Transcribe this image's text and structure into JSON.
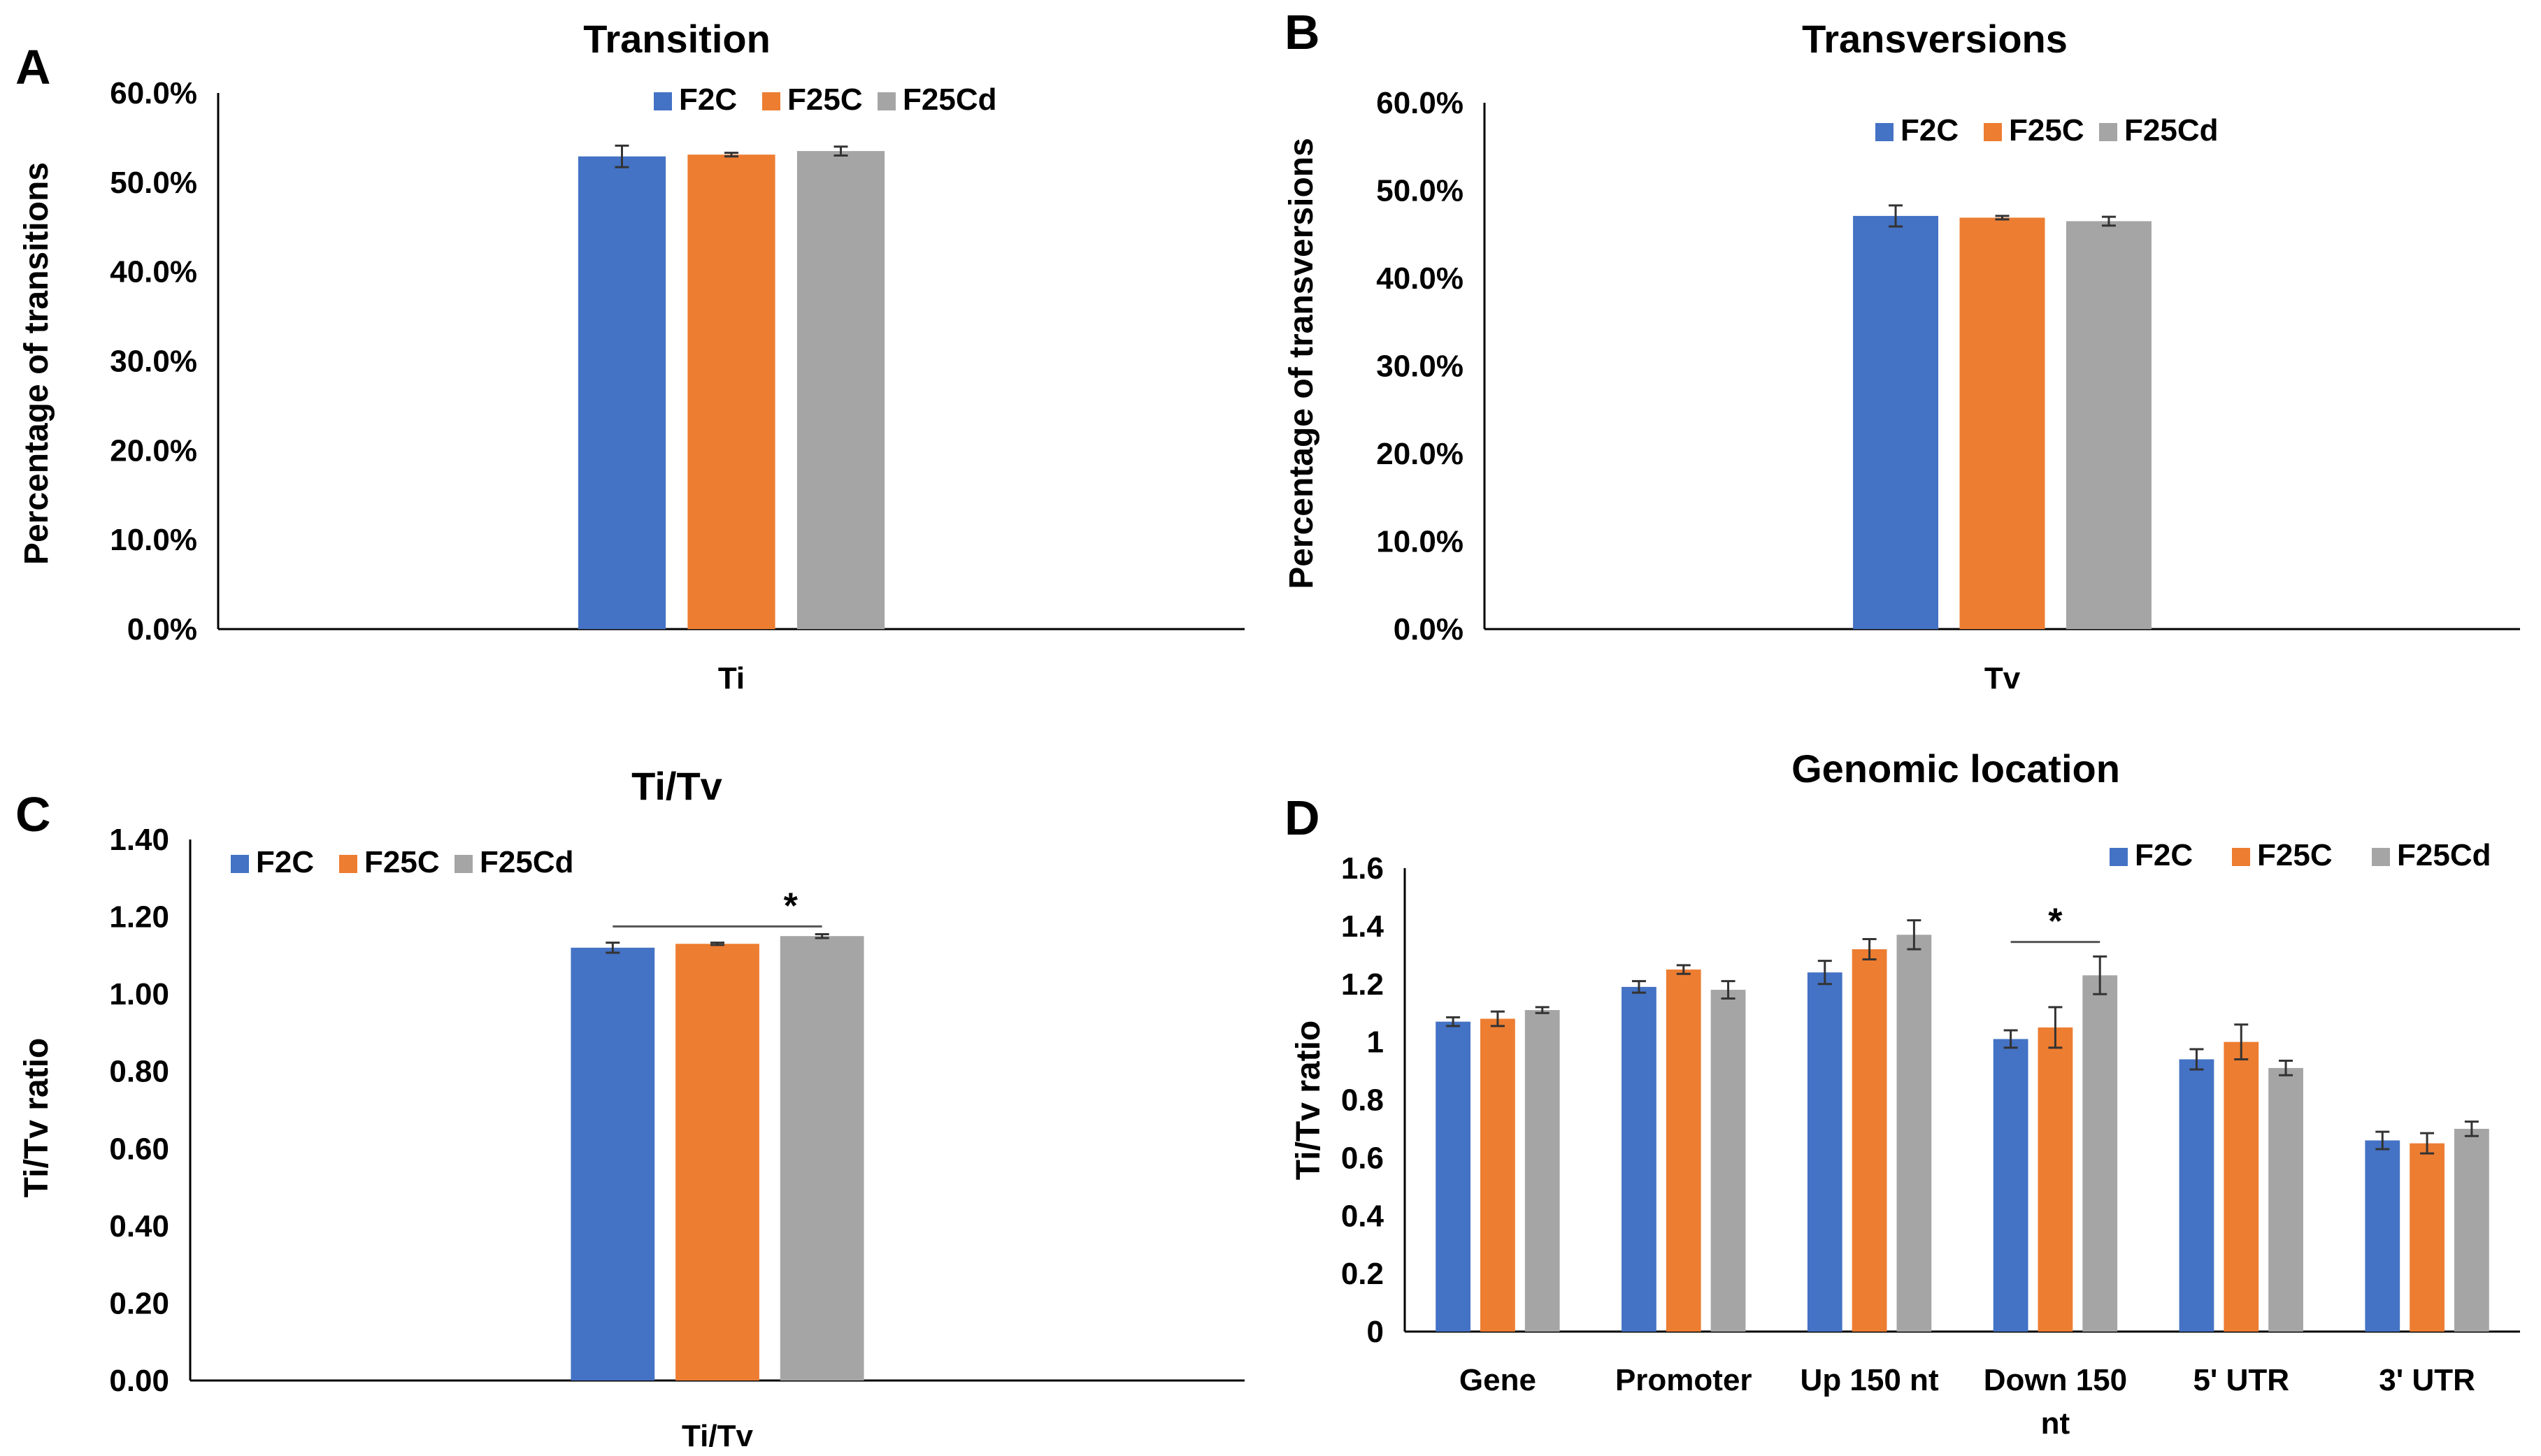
{
  "colors": {
    "F2C": "#4472C4",
    "F25C": "#ED7D31",
    "F25Cd": "#A5A5A5",
    "axis": "#000000",
    "error": "#333333"
  },
  "chart_data": [
    {
      "panel_letter": "A",
      "type": "bar",
      "title": "Transition",
      "xlabel": "",
      "ylabel": "Percentage of transitions",
      "ylim": [
        0,
        60
      ],
      "ytick_labels": [
        "0.0%",
        "10.0%",
        "20.0%",
        "30.0%",
        "40.0%",
        "50.0%",
        "60.0%"
      ],
      "categories": [
        "Ti"
      ],
      "legend_position": "top-right",
      "series": [
        {
          "name": "F2C",
          "values": [
            52.9
          ],
          "errors": [
            1.2
          ]
        },
        {
          "name": "F25C",
          "values": [
            53.1
          ],
          "errors": [
            0.2
          ]
        },
        {
          "name": "F25Cd",
          "values": [
            53.5
          ],
          "errors": [
            0.5
          ]
        }
      ],
      "annotations": []
    },
    {
      "panel_letter": "B",
      "type": "bar",
      "title": "Transversions",
      "xlabel": "",
      "ylabel": "Percentage of transversions",
      "ylim": [
        0,
        60
      ],
      "ytick_labels": [
        "0.0%",
        "10.0%",
        "20.0%",
        "30.0%",
        "40.0%",
        "50.0%",
        "60.0%"
      ],
      "categories": [
        "Tv"
      ],
      "legend_position": "top",
      "series": [
        {
          "name": "F2C",
          "values": [
            47.1
          ],
          "errors": [
            1.2
          ]
        },
        {
          "name": "F25C",
          "values": [
            46.9
          ],
          "errors": [
            0.2
          ]
        },
        {
          "name": "F25Cd",
          "values": [
            46.5
          ],
          "errors": [
            0.5
          ]
        }
      ],
      "annotations": []
    },
    {
      "panel_letter": "C",
      "type": "bar",
      "title": "Ti/Tv",
      "xlabel": "",
      "ylabel": "Ti/Tv ratio",
      "ylim": [
        0,
        1.4
      ],
      "ytick_labels": [
        "0.00",
        "0.20",
        "0.40",
        "0.60",
        "0.80",
        "1.00",
        "1.20",
        "1.40"
      ],
      "categories": [
        "Ti/Tv"
      ],
      "legend_position": "top-left",
      "series": [
        {
          "name": "F2C",
          "values": [
            1.12
          ],
          "errors": [
            0.013
          ]
        },
        {
          "name": "F25C",
          "values": [
            1.13
          ],
          "errors": [
            0.003
          ]
        },
        {
          "name": "F25Cd",
          "values": [
            1.15
          ],
          "errors": [
            0.005
          ]
        }
      ],
      "annotations": [
        {
          "text": "*",
          "from_series": 0,
          "to_series": 2,
          "category": 0,
          "y": 1.175
        }
      ]
    },
    {
      "panel_letter": "D",
      "type": "bar",
      "title": "Genomic location",
      "xlabel": "",
      "ylabel": "Ti/Tv ratio",
      "ylim": [
        0,
        1.6
      ],
      "ytick_labels": [
        "0",
        "0.2",
        "0.4",
        "0.6",
        "0.8",
        "1",
        "1.2",
        "1.4",
        "1.6"
      ],
      "categories": [
        "Gene",
        "Promoter",
        "Up 150 nt",
        "Down 150 nt",
        "5' UTR",
        "3' UTR"
      ],
      "legend_position": "top-right",
      "series": [
        {
          "name": "F2C",
          "values": [
            1.07,
            1.19,
            1.24,
            1.01,
            0.94,
            0.66
          ],
          "errors": [
            0.015,
            0.02,
            0.04,
            0.03,
            0.035,
            0.03
          ]
        },
        {
          "name": "F25C",
          "values": [
            1.08,
            1.25,
            1.32,
            1.05,
            1.0,
            0.65
          ],
          "errors": [
            0.025,
            0.015,
            0.035,
            0.07,
            0.06,
            0.035
          ]
        },
        {
          "name": "F25Cd",
          "values": [
            1.11,
            1.18,
            1.37,
            1.23,
            0.91,
            0.7
          ],
          "errors": [
            0.01,
            0.03,
            0.05,
            0.065,
            0.025,
            0.025
          ]
        }
      ],
      "annotations": [
        {
          "text": "*",
          "category": 3,
          "from_series": 0,
          "to_series": 2,
          "y": 1.345
        }
      ]
    }
  ]
}
